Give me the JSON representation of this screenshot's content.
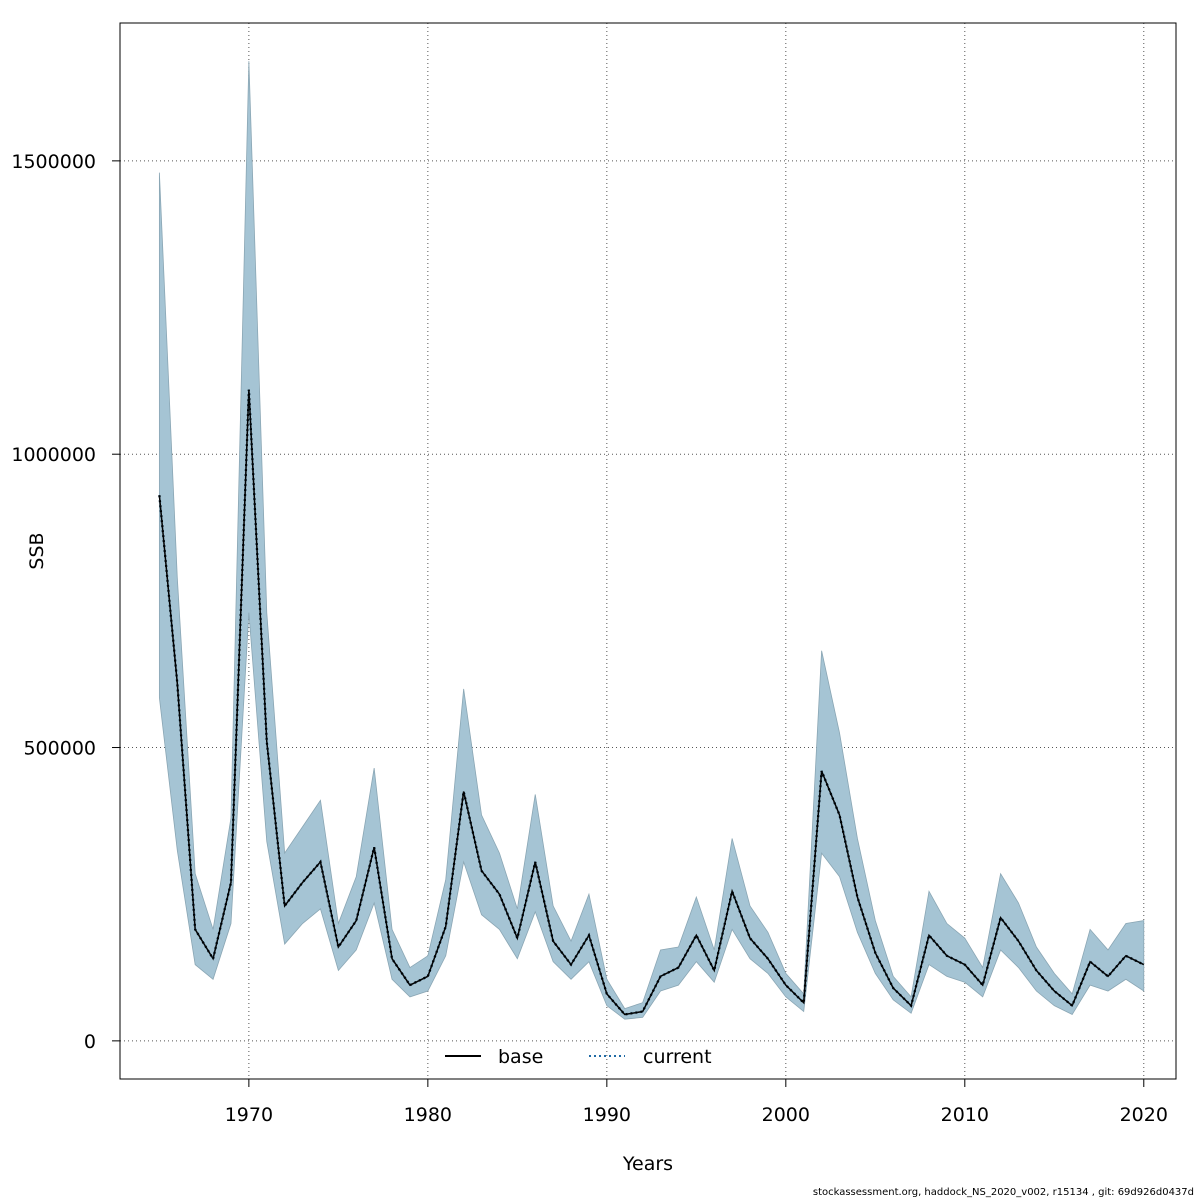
{
  "chart_data": {
    "type": "line",
    "xlabel": "Years",
    "ylabel": "SSB",
    "xlim": [
      1962.8,
      2021.8
    ],
    "ylim": [
      -65000,
      1735000
    ],
    "x_ticks": [
      1970,
      1980,
      1990,
      2000,
      2010,
      2020
    ],
    "x_tick_labels": [
      "1970",
      "1980",
      "1990",
      "2000",
      "2010",
      "2020"
    ],
    "y_ticks": [
      0,
      500000,
      1000000,
      1500000
    ],
    "y_tick_labels": [
      "0",
      "500000",
      "1000000",
      "1500000"
    ],
    "grid": true,
    "legend_position": "bottom-center",
    "band_color": "#a5c4d4",
    "years": [
      1965,
      1966,
      1967,
      1968,
      1969,
      1970,
      1971,
      1972,
      1973,
      1974,
      1975,
      1976,
      1977,
      1978,
      1979,
      1980,
      1981,
      1982,
      1983,
      1984,
      1985,
      1986,
      1987,
      1988,
      1989,
      1990,
      1991,
      1992,
      1993,
      1994,
      1995,
      1996,
      1997,
      1998,
      1999,
      2000,
      2001,
      2002,
      2003,
      2004,
      2005,
      2006,
      2007,
      2008,
      2009,
      2010,
      2011,
      2012,
      2013,
      2014,
      2015,
      2016,
      2017,
      2018,
      2019,
      2020
    ],
    "series": [
      {
        "name": "base",
        "color": "#000000",
        "dash": "solid",
        "values": [
          930000,
          610000,
          190000,
          140000,
          270000,
          1110000,
          510000,
          230000,
          270000,
          305000,
          160000,
          205000,
          330000,
          140000,
          95000,
          110000,
          195000,
          425000,
          290000,
          250000,
          175000,
          305000,
          170000,
          130000,
          180000,
          80000,
          45000,
          50000,
          110000,
          125000,
          180000,
          120000,
          255000,
          175000,
          140000,
          95000,
          65000,
          460000,
          385000,
          245000,
          150000,
          90000,
          60000,
          180000,
          145000,
          130000,
          95000,
          210000,
          170000,
          120000,
          85000,
          60000,
          135000,
          110000,
          145000,
          130000
        ]
      },
      {
        "name": "current",
        "color": "#1f6aa5",
        "dash": "dotted",
        "values": [
          930000,
          610000,
          190000,
          140000,
          270000,
          1110000,
          510000,
          230000,
          270000,
          305000,
          160000,
          205000,
          330000,
          140000,
          95000,
          110000,
          195000,
          425000,
          290000,
          250000,
          175000,
          305000,
          170000,
          130000,
          180000,
          80000,
          45000,
          50000,
          110000,
          125000,
          180000,
          120000,
          255000,
          175000,
          140000,
          95000,
          65000,
          460000,
          385000,
          245000,
          150000,
          90000,
          60000,
          180000,
          145000,
          130000,
          95000,
          210000,
          170000,
          120000,
          85000,
          60000,
          135000,
          110000,
          145000,
          130000
        ]
      }
    ],
    "band": {
      "upper": [
        1480000,
        790000,
        285000,
        190000,
        380000,
        1670000,
        730000,
        320000,
        365000,
        410000,
        200000,
        280000,
        465000,
        190000,
        125000,
        145000,
        275000,
        600000,
        385000,
        320000,
        225000,
        420000,
        230000,
        170000,
        250000,
        105000,
        55000,
        65000,
        155000,
        160000,
        245000,
        155000,
        345000,
        230000,
        185000,
        115000,
        80000,
        665000,
        525000,
        345000,
        205000,
        110000,
        75000,
        255000,
        200000,
        175000,
        125000,
        285000,
        235000,
        160000,
        115000,
        80000,
        190000,
        155000,
        200000,
        205000
      ],
      "lower": [
        585000,
        325000,
        130000,
        105000,
        200000,
        730000,
        340000,
        165000,
        200000,
        225000,
        120000,
        155000,
        235000,
        105000,
        75000,
        85000,
        145000,
        305000,
        215000,
        190000,
        140000,
        220000,
        135000,
        105000,
        135000,
        60000,
        37000,
        40000,
        85000,
        95000,
        135000,
        100000,
        190000,
        140000,
        115000,
        75000,
        50000,
        320000,
        280000,
        185000,
        115000,
        70000,
        47000,
        130000,
        110000,
        100000,
        75000,
        155000,
        125000,
        85000,
        60000,
        45000,
        95000,
        85000,
        105000,
        85000
      ]
    }
  },
  "footer_text": "stockassessment.org, haddock_NS_2020_v002, r15134 , git: 69d926d0437d"
}
